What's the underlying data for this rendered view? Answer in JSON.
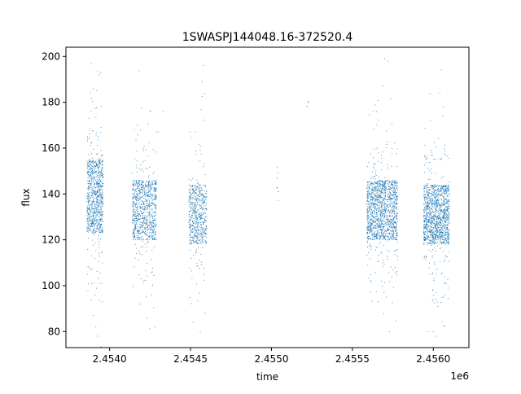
{
  "chart_data": {
    "type": "scatter",
    "title": "1SWASPJ144048.16-372520.4",
    "xlabel": "time",
    "ylabel": "flux",
    "x_offset_label": "1e6",
    "xlim": [
      2453730,
      2456220
    ],
    "ylim": [
      73,
      204
    ],
    "x_ticks": [
      2454000,
      2454500,
      2455000,
      2455500,
      2456000
    ],
    "x_tick_labels": [
      "2.4540",
      "2.4545",
      "2.4550",
      "2.4555",
      "2.4560"
    ],
    "y_ticks": [
      80,
      100,
      120,
      140,
      160,
      180,
      200
    ],
    "y_tick_labels": [
      "80",
      "100",
      "120",
      "140",
      "160",
      "180",
      "200"
    ],
    "grid": false,
    "marker_color": "#1f77b4",
    "series": [
      {
        "observing_seasons": [
          {
            "x_range": [
              2453860,
              2453960
            ],
            "center": 139,
            "spread": 16,
            "n_points": 900
          },
          {
            "x_range": [
              2454140,
              2454290
            ],
            "center": 133,
            "spread": 13,
            "n_points": 900
          },
          {
            "x_range": [
              2454490,
              2454600
            ],
            "center": 131,
            "spread": 13,
            "n_points": 600
          },
          {
            "x_range": [
              2455030,
              2455045
            ],
            "center": 145,
            "spread": 5,
            "n_points": 8
          },
          {
            "x_range": [
              2455220,
              2455230
            ],
            "center": 180,
            "spread": 2,
            "n_points": 4
          },
          {
            "x_range": [
              2455590,
              2455780
            ],
            "center": 133,
            "spread": 13,
            "n_points": 1400
          },
          {
            "x_range": [
              2455940,
              2456100
            ],
            "center": 131,
            "spread": 13,
            "n_points": 1300
          }
        ],
        "outliers": [
          [
            2453880,
            184
          ],
          [
            2453920,
            185
          ],
          [
            2453935,
            192
          ],
          [
            2453925,
            78
          ],
          [
            2453915,
            82
          ],
          [
            2453910,
            96
          ],
          [
            2453900,
            87
          ],
          [
            2454170,
            170
          ],
          [
            2454250,
            176
          ],
          [
            2454190,
            92
          ],
          [
            2454230,
            86
          ],
          [
            2454300,
            167
          ],
          [
            2454330,
            176
          ],
          [
            2454280,
            82
          ],
          [
            2454580,
            196
          ],
          [
            2454570,
            189
          ],
          [
            2454560,
            80
          ],
          [
            2454590,
            88
          ],
          [
            2455700,
            199
          ],
          [
            2455720,
            198
          ],
          [
            2455690,
            187
          ],
          [
            2455650,
            176
          ],
          [
            2455730,
            80
          ],
          [
            2455710,
            95
          ],
          [
            2455680,
            102
          ],
          [
            2456050,
            194
          ],
          [
            2456040,
            184
          ],
          [
            2456060,
            178
          ],
          [
            2456020,
            78
          ],
          [
            2456000,
            80
          ],
          [
            2456060,
            95
          ]
        ]
      }
    ]
  }
}
